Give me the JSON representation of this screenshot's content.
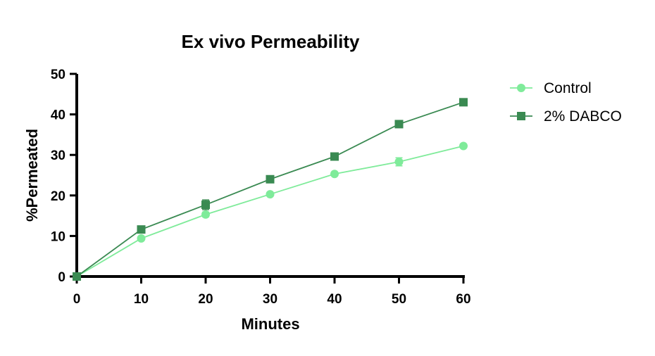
{
  "chart_data": {
    "type": "line",
    "title": "Ex vivo Permeability",
    "xlabel": "Minutes",
    "ylabel": "%Permeated",
    "x": [
      0,
      10,
      20,
      30,
      40,
      50,
      60
    ],
    "xticks": [
      "0",
      "10",
      "20",
      "30",
      "40",
      "50",
      "60"
    ],
    "yticks": [
      "0",
      "10",
      "20",
      "30",
      "40",
      "50"
    ],
    "xlim": [
      0,
      60
    ],
    "ylim": [
      0,
      50
    ],
    "grid": false,
    "legend_position": "right",
    "series": [
      {
        "name": "Control",
        "marker": "circle",
        "color": "#7FEB9A",
        "values": [
          0,
          9.4,
          15.3,
          20.3,
          25.3,
          28.3,
          32.2
        ],
        "error": [
          0,
          0.4,
          0.6,
          0.4,
          0.4,
          1.0,
          0.4
        ]
      },
      {
        "name": "2% DABCO",
        "marker": "square",
        "color": "#3A8A52",
        "values": [
          0,
          11.6,
          17.7,
          24.0,
          29.6,
          37.6,
          43.0
        ],
        "error": [
          0,
          0.4,
          1.2,
          0.4,
          0.4,
          0.4,
          0.4
        ]
      }
    ]
  }
}
